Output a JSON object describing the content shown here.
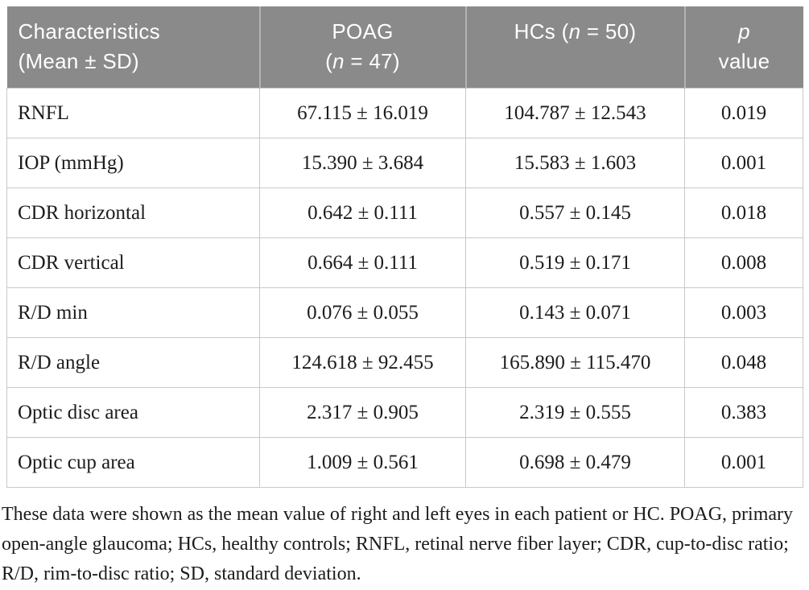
{
  "table": {
    "header": {
      "characteristics": {
        "line1": "Characteristics",
        "line2": "(Mean ± SD)"
      },
      "poag": {
        "line1": "POAG",
        "n_open": "(",
        "n": "n",
        "n_rest": " = 47)"
      },
      "hcs": {
        "pre": "HCs (",
        "n": "n",
        "post": " = 50)"
      },
      "p": {
        "symbol": "p",
        "label": "value"
      }
    },
    "rows": [
      {
        "label": "RNFL",
        "poag": "67.115 ± 16.019",
        "hcs": "104.787 ± 12.543",
        "p": "0.019"
      },
      {
        "label": "IOP (mmHg)",
        "poag": "15.390 ± 3.684",
        "hcs": "15.583 ± 1.603",
        "p": "0.001"
      },
      {
        "label": "CDR horizontal",
        "poag": "0.642 ± 0.111",
        "hcs": "0.557 ± 0.145",
        "p": "0.018"
      },
      {
        "label": "CDR vertical",
        "poag": "0.664 ± 0.111",
        "hcs": "0.519 ± 0.171",
        "p": "0.008"
      },
      {
        "label": "R/D min",
        "poag": "0.076 ± 0.055",
        "hcs": "0.143 ± 0.071",
        "p": "0.003"
      },
      {
        "label": "R/D angle",
        "poag": "124.618 ± 92.455",
        "hcs": "165.890 ± 115.470",
        "p": "0.048"
      },
      {
        "label": "Optic disc area",
        "poag": "2.317 ± 0.905",
        "hcs": "2.319 ± 0.555",
        "p": "0.383"
      },
      {
        "label": "Optic cup area",
        "poag": "1.009 ± 0.561",
        "hcs": "0.698 ± 0.479",
        "p": "0.001"
      }
    ]
  },
  "footnote": "These data were shown as the mean value of right and left eyes in each patient or HC. POAG, primary open-angle glaucoma; HCs, healthy controls; RNFL, retinal nerve fiber layer; CDR, cup-to-disc ratio; R/D, rim-to-disc ratio; SD, standard deviation.",
  "colors": {
    "header_bg": "#8a8a8a",
    "header_text": "#ffffff",
    "header_divider": "#b3b3b3",
    "grid_line": "#c9c9c9"
  }
}
